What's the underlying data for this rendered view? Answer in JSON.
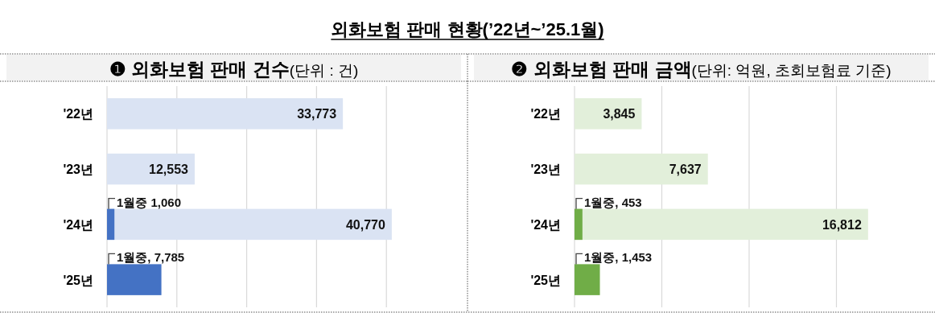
{
  "chart_data": [
    {
      "type": "bar",
      "orientation": "horizontal",
      "title": "❶ 외화보험 판매 건수",
      "subtitle": "(단위 : 건)",
      "annotations": [
        "외화보험 판매 현황(’22년~’25.1월)"
      ],
      "categories": [
        "'22년",
        "'23년",
        "'24년",
        "'25년"
      ],
      "series": [
        {
          "color": "#dae3f3",
          "values": [
            33773,
            12553,
            40770,
            null
          ],
          "value_labels": [
            "33,773",
            "12,553",
            "40,770",
            null
          ]
        },
        {
          "color": "#4472c4",
          "values": [
            null,
            null,
            1060,
            7785
          ],
          "value_labels": [
            null,
            null,
            "1월중 1,060",
            "1월중, 7,785"
          ]
        }
      ],
      "xticks": [
        {
          "value": 0,
          "label": null
        },
        {
          "value": 10000,
          "label": null
        },
        {
          "value": 20000,
          "label": null
        },
        {
          "value": 30000,
          "label": null
        },
        {
          "value": 40000,
          "label": null
        }
      ],
      "grid": "x",
      "tick_labels": "y"
    },
    {
      "type": "bar",
      "orientation": "horizontal",
      "title": "❷ 외화보험 판매 금액",
      "subtitle": "(단위: 억원, 초회보험료 기준)",
      "categories": [
        "'22년",
        "'23년",
        "'24년",
        "'25년"
      ],
      "series": [
        {
          "color": "#e2efda",
          "values": [
            3845,
            7637,
            16812,
            null
          ],
          "value_labels": [
            "3,845",
            "7,637",
            "16,812",
            null
          ]
        },
        {
          "color": "#70ad47",
          "values": [
            null,
            null,
            453,
            1453
          ],
          "value_labels": [
            null,
            null,
            "1월중, 453",
            "1월중, 1,453"
          ]
        }
      ],
      "xticks": [
        {
          "value": 0,
          "label": null
        },
        {
          "value": 5000,
          "label": null
        },
        {
          "value": 10000,
          "label": null
        },
        {
          "value": 15000,
          "label": null
        }
      ],
      "grid": "x",
      "tick_labels": "y"
    }
  ]
}
